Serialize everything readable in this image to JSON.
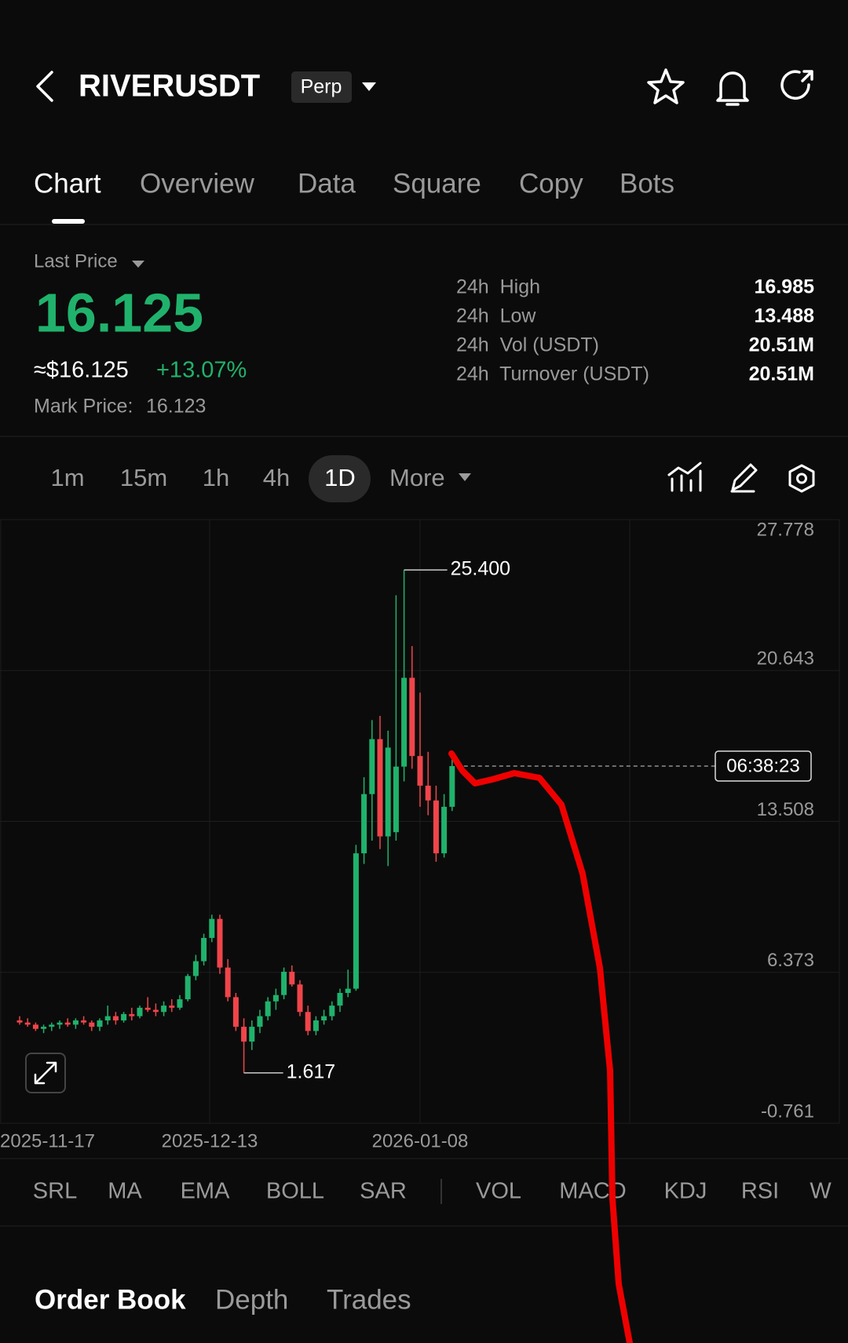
{
  "header": {
    "symbol": "RIVERUSDT",
    "badge": "Perp"
  },
  "tabs": [
    "Chart",
    "Overview",
    "Data",
    "Square",
    "Copy",
    "Bots"
  ],
  "price": {
    "label": "Last Price",
    "last": "16.125",
    "usd": "≈$16.125",
    "change": "+13.07%",
    "mark_label": "Mark Price:",
    "mark": "16.123"
  },
  "stats": [
    {
      "label": "24h  High",
      "value": "16.985"
    },
    {
      "label": "24h  Low",
      "value": "13.488"
    },
    {
      "label": "24h  Vol (USDT)",
      "value": "20.51M"
    },
    {
      "label": "24h  Turnover (USDT)",
      "value": "20.51M"
    }
  ],
  "intervals": [
    "1m",
    "15m",
    "1h",
    "4h",
    "1D",
    "More"
  ],
  "chart": {
    "type": "candlestick",
    "up_color": "#20b26c",
    "down_color": "#ef454a",
    "ylim": [
      -0.761,
      27.778
    ],
    "yticks": [
      -0.761,
      6.373,
      13.508,
      20.643,
      27.778
    ],
    "x_labels": [
      "2025-11-17",
      "2025-12-13",
      "2026-01-08"
    ],
    "high_label": "25.400",
    "low_label": "1.617",
    "countdown": "06:38:23",
    "candles": [
      {
        "open": 4.1,
        "high": 4.3,
        "low": 3.9,
        "close": 4.0
      },
      {
        "open": 4.0,
        "high": 4.2,
        "low": 3.8,
        "close": 3.9
      },
      {
        "open": 3.9,
        "high": 4.0,
        "low": 3.6,
        "close": 3.7
      },
      {
        "open": 3.7,
        "high": 3.9,
        "low": 3.5,
        "close": 3.8
      },
      {
        "open": 3.8,
        "high": 4.0,
        "low": 3.6,
        "close": 3.9
      },
      {
        "open": 3.9,
        "high": 4.1,
        "low": 3.7,
        "close": 4.0
      },
      {
        "open": 4.0,
        "high": 4.2,
        "low": 3.8,
        "close": 3.9
      },
      {
        "open": 3.9,
        "high": 4.2,
        "low": 3.7,
        "close": 4.1
      },
      {
        "open": 4.1,
        "high": 4.3,
        "low": 3.9,
        "close": 4.0
      },
      {
        "open": 4.0,
        "high": 4.1,
        "low": 3.6,
        "close": 3.8
      },
      {
        "open": 3.8,
        "high": 4.2,
        "low": 3.6,
        "close": 4.1
      },
      {
        "open": 4.1,
        "high": 4.8,
        "low": 3.9,
        "close": 4.3
      },
      {
        "open": 4.3,
        "high": 4.5,
        "low": 3.9,
        "close": 4.1
      },
      {
        "open": 4.1,
        "high": 4.5,
        "low": 4.0,
        "close": 4.4
      },
      {
        "open": 4.4,
        "high": 4.7,
        "low": 4.1,
        "close": 4.3
      },
      {
        "open": 4.3,
        "high": 4.8,
        "low": 4.2,
        "close": 4.7
      },
      {
        "open": 4.7,
        "high": 5.2,
        "low": 4.5,
        "close": 4.6
      },
      {
        "open": 4.6,
        "high": 4.9,
        "low": 4.3,
        "close": 4.5
      },
      {
        "open": 4.5,
        "high": 5.0,
        "low": 4.3,
        "close": 4.8
      },
      {
        "open": 4.8,
        "high": 5.1,
        "low": 4.5,
        "close": 4.7
      },
      {
        "open": 4.7,
        "high": 5.3,
        "low": 4.6,
        "close": 5.1
      },
      {
        "open": 5.1,
        "high": 6.3,
        "low": 5.0,
        "close": 6.2
      },
      {
        "open": 6.2,
        "high": 7.2,
        "low": 6.0,
        "close": 6.9
      },
      {
        "open": 6.9,
        "high": 8.2,
        "low": 6.7,
        "close": 8.0
      },
      {
        "open": 8.0,
        "high": 9.1,
        "low": 7.8,
        "close": 8.9
      },
      {
        "open": 8.9,
        "high": 9.1,
        "low": 6.3,
        "close": 6.6
      },
      {
        "open": 6.6,
        "high": 7.0,
        "low": 5.0,
        "close": 5.2
      },
      {
        "open": 5.2,
        "high": 5.4,
        "low": 3.6,
        "close": 3.8
      },
      {
        "open": 3.8,
        "high": 4.2,
        "low": 1.617,
        "close": 3.1
      },
      {
        "open": 3.1,
        "high": 4.1,
        "low": 2.7,
        "close": 3.8
      },
      {
        "open": 3.8,
        "high": 4.6,
        "low": 3.5,
        "close": 4.3
      },
      {
        "open": 4.3,
        "high": 5.2,
        "low": 4.1,
        "close": 5.0
      },
      {
        "open": 5.0,
        "high": 5.6,
        "low": 4.6,
        "close": 5.3
      },
      {
        "open": 5.3,
        "high": 6.6,
        "low": 5.1,
        "close": 6.4
      },
      {
        "open": 6.4,
        "high": 6.7,
        "low": 5.7,
        "close": 5.8
      },
      {
        "open": 5.8,
        "high": 6.0,
        "low": 4.3,
        "close": 4.5
      },
      {
        "open": 4.5,
        "high": 4.8,
        "low": 3.4,
        "close": 3.6
      },
      {
        "open": 3.6,
        "high": 4.3,
        "low": 3.4,
        "close": 4.1
      },
      {
        "open": 4.1,
        "high": 4.6,
        "low": 3.9,
        "close": 4.3
      },
      {
        "open": 4.3,
        "high": 5.0,
        "low": 4.1,
        "close": 4.8
      },
      {
        "open": 4.8,
        "high": 5.6,
        "low": 4.5,
        "close": 5.4
      },
      {
        "open": 5.4,
        "high": 6.5,
        "low": 5.2,
        "close": 5.6
      },
      {
        "open": 5.6,
        "high": 12.4,
        "low": 5.5,
        "close": 12.0
      },
      {
        "open": 12.0,
        "high": 15.6,
        "low": 11.5,
        "close": 14.8
      },
      {
        "open": 14.8,
        "high": 18.3,
        "low": 12.6,
        "close": 17.4
      },
      {
        "open": 17.4,
        "high": 18.5,
        "low": 12.2,
        "close": 12.8
      },
      {
        "open": 12.8,
        "high": 17.8,
        "low": 11.4,
        "close": 17.0
      },
      {
        "open": 13.0,
        "high": 24.2,
        "low": 12.6,
        "close": 16.1
      },
      {
        "open": 16.1,
        "high": 25.4,
        "low": 15.4,
        "close": 20.3
      },
      {
        "open": 20.3,
        "high": 21.8,
        "low": 16.0,
        "close": 16.6
      },
      {
        "open": 16.6,
        "high": 19.6,
        "low": 14.2,
        "close": 15.2
      },
      {
        "open": 15.2,
        "high": 16.8,
        "low": 13.8,
        "close": 14.5
      },
      {
        "open": 14.5,
        "high": 15.2,
        "low": 11.6,
        "close": 12.0
      },
      {
        "open": 12.0,
        "high": 14.8,
        "low": 11.8,
        "close": 14.2
      },
      {
        "open": 14.2,
        "high": 16.7,
        "low": 14.0,
        "close": 16.125
      }
    ]
  },
  "indicators": [
    "SRL",
    "MA",
    "EMA",
    "BOLL",
    "SAR",
    "VOL",
    "MACD",
    "KDJ",
    "RSI",
    "W"
  ],
  "book_tabs": [
    "Order Book",
    "Depth",
    "Trades"
  ]
}
